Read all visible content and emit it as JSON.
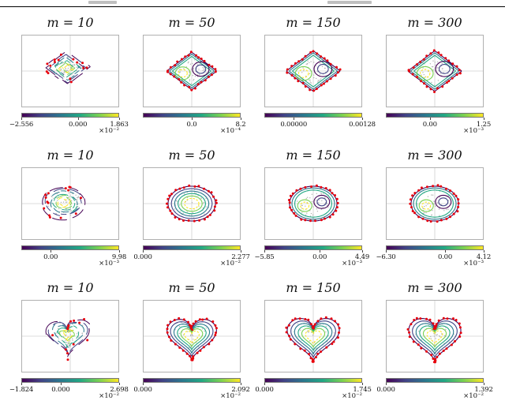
{
  "page": {
    "background": "#ffffff",
    "header": {
      "rule_color": "#000000"
    }
  },
  "chart_data": {
    "type": "contour-grid",
    "title": "",
    "description": "3x4 grid of 2D contour plots (learned densities) with red sample points and gray points; columns show increasing number of samples m; each subplot has a horizontal viridis colorbar below it",
    "colormap": [
      "#440154",
      "#414487",
      "#2a788e",
      "#22a884",
      "#7ad151",
      "#fde725"
    ],
    "colors": {
      "red_dot": "#e8000b",
      "gray_dot": "#b3b3b3",
      "crosshair": "#d0d0d0",
      "box_border": "#b0b0b0"
    },
    "panels": [
      {
        "title": "m = 10",
        "shape": "diamond",
        "variant": "fragmented",
        "dots": "scattered",
        "offset": [
          -5,
          -4
        ],
        "scale": 0.78,
        "ticks": [
          {
            "label": "−2.556",
            "pos": 0
          },
          {
            "label": "0.000",
            "pos": 0.578
          },
          {
            "label": "1.863",
            "pos": 1
          }
        ],
        "exponent": "×10⁻²"
      },
      {
        "title": "m = 50",
        "shape": "diamond",
        "variant": "bilobed",
        "dots": "boundary",
        "offset": [
          0,
          0
        ],
        "scale": 0.88,
        "ticks": [
          {
            "label": "0.0",
            "pos": 0.5
          },
          {
            "label": "8.2",
            "pos": 1
          }
        ],
        "exponent": "×10⁻⁴"
      },
      {
        "title": "m = 150",
        "shape": "diamond",
        "variant": "bilobed",
        "dots": "boundary",
        "offset": [
          0,
          0
        ],
        "scale": 0.95,
        "ticks": [
          {
            "label": "0.00000",
            "pos": 0.3
          },
          {
            "label": "0.00128",
            "pos": 1
          }
        ],
        "exponent": ""
      },
      {
        "title": "m = 300",
        "shape": "diamond",
        "variant": "bilobed",
        "dots": "boundary",
        "offset": [
          0,
          0
        ],
        "scale": 0.95,
        "ticks": [
          {
            "label": "0.00",
            "pos": 0.45
          },
          {
            "label": "1.25",
            "pos": 1
          }
        ],
        "exponent": "×10⁻³"
      },
      {
        "title": "m = 10",
        "shape": "ellipse",
        "variant": "fragmented",
        "dots": "scattered",
        "offset": [
          -7,
          -1
        ],
        "scale": 0.9,
        "ticks": [
          {
            "label": "0.00",
            "pos": 0.3
          },
          {
            "label": "9.98",
            "pos": 1
          }
        ],
        "exponent": "×10⁻³"
      },
      {
        "title": "m = 50",
        "shape": "ellipse",
        "variant": "concentric",
        "dots": "boundary",
        "offset": [
          0,
          0
        ],
        "scale": 1,
        "ticks": [
          {
            "label": "0.000",
            "pos": 0
          },
          {
            "label": "2.277",
            "pos": 1
          }
        ],
        "exponent": "×10⁻²"
      },
      {
        "title": "m = 150",
        "shape": "ellipse",
        "variant": "bilobed",
        "dots": "boundary",
        "offset": [
          0,
          0
        ],
        "scale": 1,
        "ticks": [
          {
            "label": "−5.85",
            "pos": 0
          },
          {
            "label": "0.00",
            "pos": 0.566
          },
          {
            "label": "4.49",
            "pos": 1
          }
        ],
        "exponent": "×10⁻³"
      },
      {
        "title": "m = 300",
        "shape": "ellipse",
        "variant": "bilobed",
        "dots": "boundary",
        "offset": [
          0,
          0
        ],
        "scale": 1,
        "ticks": [
          {
            "label": "−6.30",
            "pos": 0
          },
          {
            "label": "0.00",
            "pos": 0.605
          },
          {
            "label": "4.12",
            "pos": 1
          }
        ],
        "exponent": "×10⁻³"
      },
      {
        "title": "m = 10",
        "shape": "heart",
        "variant": "fragmented",
        "dots": "scattered",
        "offset": [
          -3,
          -2
        ],
        "scale": 0.85,
        "ticks": [
          {
            "label": "−1.824",
            "pos": 0
          },
          {
            "label": "0.000",
            "pos": 0.403
          },
          {
            "label": "2.698",
            "pos": 1
          }
        ],
        "exponent": "×10⁻²"
      },
      {
        "title": "m = 50",
        "shape": "heart",
        "variant": "concentric",
        "dots": "boundary",
        "offset": [
          0,
          0
        ],
        "scale": 0.95,
        "ticks": [
          {
            "label": "0.000",
            "pos": 0
          },
          {
            "label": "2.092",
            "pos": 1
          }
        ],
        "exponent": "×10⁻²"
      },
      {
        "title": "m = 150",
        "shape": "heart",
        "variant": "concentric",
        "dots": "boundary",
        "offset": [
          0,
          0
        ],
        "scale": 1,
        "ticks": [
          {
            "label": "0.000",
            "pos": 0
          },
          {
            "label": "1.745",
            "pos": 1
          }
        ],
        "exponent": "×10⁻²"
      },
      {
        "title": "m = 300",
        "shape": "heart",
        "variant": "concentric",
        "dots": "boundary",
        "offset": [
          0,
          0
        ],
        "scale": 1,
        "ticks": [
          {
            "label": "0.000",
            "pos": 0
          },
          {
            "label": "1.392",
            "pos": 1
          }
        ],
        "exponent": "×10⁻²"
      }
    ]
  }
}
